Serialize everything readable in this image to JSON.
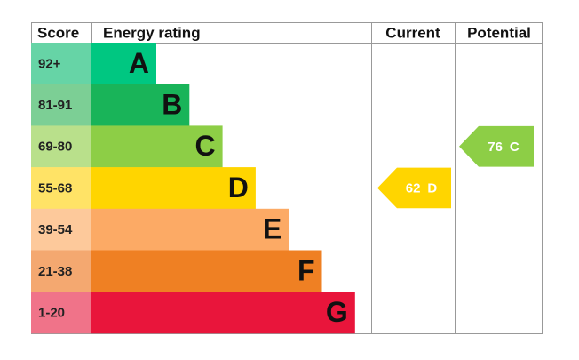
{
  "headers": {
    "score": "Score",
    "rating": "Energy rating",
    "current": "Current",
    "potential": "Potential"
  },
  "bands": [
    {
      "score": "92+",
      "letter": "A"
    },
    {
      "score": "81-91",
      "letter": "B"
    },
    {
      "score": "69-80",
      "letter": "C"
    },
    {
      "score": "55-68",
      "letter": "D"
    },
    {
      "score": "39-54",
      "letter": "E"
    },
    {
      "score": "21-38",
      "letter": "F"
    },
    {
      "score": "1-20",
      "letter": "G"
    }
  ],
  "current": {
    "score": 62,
    "letter": "D"
  },
  "potential": {
    "score": 76,
    "letter": "C"
  }
}
